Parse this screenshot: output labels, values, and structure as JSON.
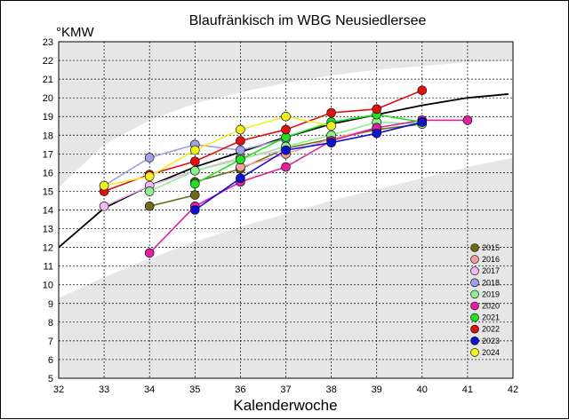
{
  "chart_data": {
    "type": "line",
    "title": "Blaufränkisch im WBG Neusiedlersee",
    "ylabel": "°KMW",
    "xlabel": "Kalenderwoche",
    "xlim": [
      32,
      42
    ],
    "ylim": [
      5,
      23
    ],
    "xticks": [
      "32",
      "33",
      "34",
      "35",
      "36",
      "37",
      "38",
      "39",
      "40",
      "41",
      "42"
    ],
    "yticks": [
      "5",
      "6",
      "7",
      "8",
      "9",
      "10",
      "11",
      "12",
      "13",
      "14",
      "15",
      "16",
      "17",
      "18",
      "19",
      "20",
      "21",
      "22",
      "23"
    ],
    "grid": true,
    "legend_position": "bottom-right",
    "colors": {
      "trend": "#000000",
      "band": "#e6e6e6",
      "gap": "#ffffff"
    },
    "trend_line": {
      "x": [
        32,
        33,
        34,
        35,
        36,
        37,
        38,
        39,
        40,
        41,
        41.9
      ],
      "y": [
        12.0,
        14.1,
        15.3,
        16.3,
        17.1,
        17.9,
        18.6,
        19.1,
        19.6,
        20.0,
        20.2
      ]
    },
    "band_upper": {
      "outer": {
        "x": [
          32,
          33,
          34,
          35,
          36,
          37,
          38,
          39,
          40,
          41,
          42
        ],
        "y": [
          15.2,
          17.5,
          18.8,
          19.7,
          20.3,
          20.8,
          21.2,
          21.5,
          21.7,
          21.9,
          22.0
        ]
      },
      "inner": {
        "x": [
          32,
          33,
          34,
          35,
          36,
          37,
          38,
          39,
          40,
          41,
          42
        ],
        "y": [
          23,
          23,
          23,
          23,
          23,
          23,
          23,
          23,
          23,
          23,
          23
        ]
      }
    },
    "band_lower": {
      "outer": {
        "x": [
          32,
          33,
          34,
          35,
          36,
          37,
          38,
          39,
          40,
          41,
          42
        ],
        "y": [
          9.3,
          10.4,
          11.4,
          12.3,
          13.1,
          13.8,
          14.5,
          15.1,
          15.7,
          16.3,
          16.8
        ]
      },
      "inner": {
        "x": [
          32,
          33,
          34,
          35,
          36,
          37,
          38,
          39,
          40,
          41,
          42
        ],
        "y": [
          5,
          5,
          5,
          5,
          5,
          5,
          5,
          5,
          5,
          5,
          5
        ]
      }
    },
    "series": [
      {
        "name": "2015",
        "color": "#6b6b1a",
        "x": [
          34,
          35,
          35,
          36,
          37,
          38,
          39,
          40
        ],
        "y": [
          14.2,
          14.8,
          15.5,
          16.2,
          17.3,
          17.8,
          18.3,
          18.6
        ]
      },
      {
        "name": "2016",
        "color": "#f0a0a0",
        "x": [
          36,
          37,
          38,
          39
        ],
        "y": [
          16.3,
          17.0,
          17.8,
          18.4
        ]
      },
      {
        "name": "2017",
        "color": "#f2b8f2",
        "x": [
          33,
          34,
          35,
          36,
          37
        ],
        "y": [
          14.2,
          15.3,
          16.1,
          16.8,
          17.2
        ]
      },
      {
        "name": "2018",
        "color": "#9fa0e6",
        "x": [
          33,
          34,
          35,
          36,
          37
        ],
        "y": [
          15.3,
          16.8,
          17.5,
          17.2,
          17.8
        ]
      },
      {
        "name": "2019",
        "color": "#90ee90",
        "x": [
          34,
          35,
          36,
          37,
          38,
          39,
          40
        ],
        "y": [
          15.0,
          16.1,
          16.7,
          17.4,
          18.0,
          18.7,
          18.6
        ]
      },
      {
        "name": "2020",
        "color": "#e020a0",
        "x": [
          34,
          35,
          36,
          37,
          38,
          39,
          40,
          41
        ],
        "y": [
          11.7,
          14.2,
          15.5,
          16.3,
          17.7,
          18.4,
          18.8,
          18.8
        ]
      },
      {
        "name": "2021",
        "color": "#22e022",
        "x": [
          35,
          36,
          37,
          38,
          39,
          40
        ],
        "y": [
          15.4,
          16.7,
          17.9,
          18.7,
          19.1,
          18.7
        ]
      },
      {
        "name": "2022",
        "color": "#e01010",
        "x": [
          33,
          34,
          35,
          36,
          37,
          38,
          39,
          40
        ],
        "y": [
          15.0,
          15.9,
          16.6,
          17.7,
          18.3,
          19.2,
          19.4,
          20.4
        ]
      },
      {
        "name": "2023",
        "color": "#1010d0",
        "x": [
          35,
          36,
          37,
          38,
          39,
          40
        ],
        "y": [
          14.0,
          15.7,
          17.2,
          17.6,
          18.1,
          18.7
        ]
      },
      {
        "name": "2024",
        "color": "#f0f020",
        "x": [
          33,
          34,
          35,
          36,
          37,
          38
        ],
        "y": [
          15.3,
          15.8,
          17.2,
          18.3,
          19.0,
          18.5
        ]
      }
    ]
  }
}
